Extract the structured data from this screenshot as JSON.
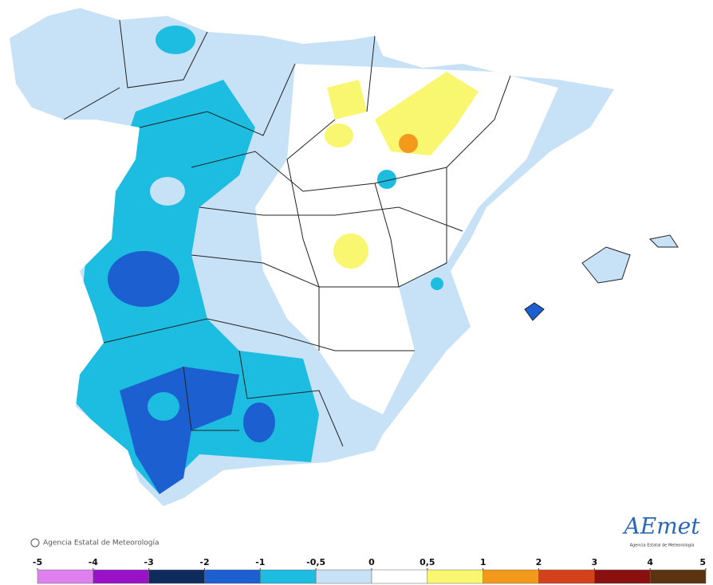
{
  "credit": "Agencia Estatal de Meteorología",
  "logo": {
    "name": "AEmet",
    "caption": "Agencia Estatal de Meteorología"
  },
  "legend": {
    "ticks": [
      -5,
      -4,
      -3,
      -2,
      -1,
      {
        "value": -0.5,
        "label": "-0,5"
      },
      0,
      {
        "value": 0.5,
        "label": "0,5"
      },
      1,
      2,
      3,
      4,
      5
    ],
    "colors": [
      "#e07ff0",
      "#9a12c8",
      "#0e2b5c",
      "#1b5fd0",
      "#1cbde0",
      "#c7e1f7",
      "#ffffff",
      "#f8f76f",
      "#f39a1c",
      "#d3421a",
      "#8a1010",
      "#5b3311"
    ]
  }
}
